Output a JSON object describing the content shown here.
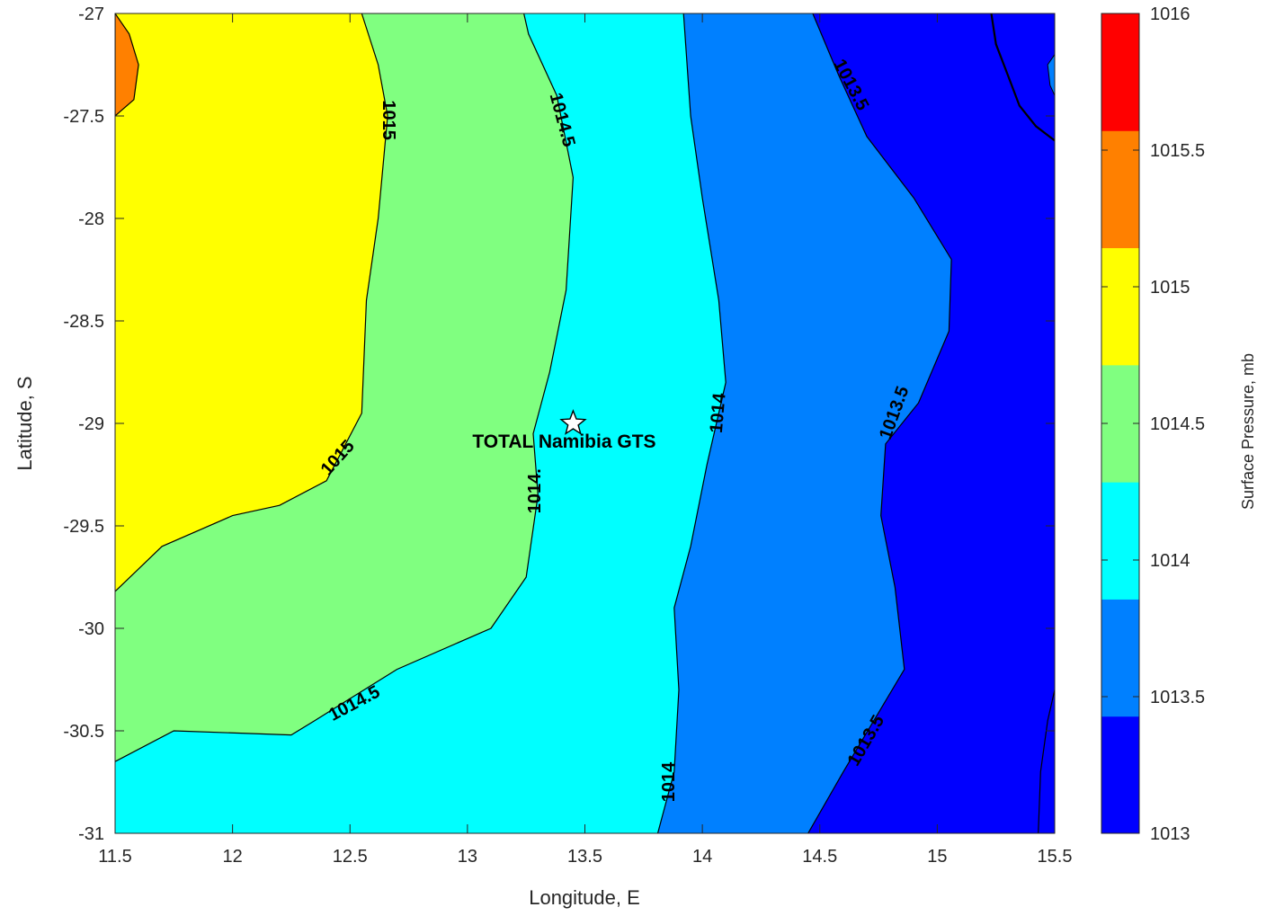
{
  "chart_data": {
    "type": "contourf",
    "title": "",
    "xlabel": "Longitude, E",
    "ylabel": "Latitude, S",
    "xlim": [
      11.5,
      15.5
    ],
    "ylim": [
      -31,
      -27
    ],
    "xticks": [
      "11.5",
      "12",
      "12.5",
      "13",
      "13.5",
      "14",
      "14.5",
      "15",
      "15.5"
    ],
    "yticks": [
      "-27",
      "-27.5",
      "-28",
      "-28.5",
      "-29",
      "-29.5",
      "-30",
      "-30.5",
      "-31"
    ],
    "grid": false,
    "colorbar": {
      "label": "Surface Pressure, mb",
      "range": [
        1013,
        1016
      ],
      "ticks": [
        "1016",
        "1015.5",
        "1015",
        "1014.5",
        "1014",
        "1013.5",
        "1013"
      ],
      "bands": [
        {
          "from": 1013.0,
          "to": 1013.5,
          "color": "#0000ff"
        },
        {
          "from": 1013.5,
          "to": 1014.0,
          "color": "#0080ff"
        },
        {
          "from": 1014.0,
          "to": 1014.5,
          "color": "#00ffff"
        },
        {
          "from": 1014.5,
          "to": 1015.0,
          "color": "#80ff80"
        },
        {
          "from": 1015.0,
          "to": 1015.5,
          "color": "#ffff00"
        },
        {
          "from": 1015.5,
          "to": 1016.0,
          "color": "#ff8000"
        },
        {
          "from": 1016.0,
          "to": 1016.5,
          "color": "#ff0000"
        }
      ]
    },
    "contour_levels": [
      {
        "level": 1015.0,
        "label": "1015",
        "points": [
          [
            11.5,
            -29.82
          ],
          [
            11.7,
            -29.6
          ],
          [
            12.0,
            -29.45
          ],
          [
            12.2,
            -29.4
          ],
          [
            12.4,
            -29.28
          ],
          [
            12.55,
            -28.95
          ],
          [
            12.57,
            -28.4
          ],
          [
            12.62,
            -28.0
          ],
          [
            12.66,
            -27.5
          ],
          [
            12.62,
            -27.25
          ],
          [
            12.55,
            -27.0
          ]
        ]
      },
      {
        "level": 1014.5,
        "label": "1014.5",
        "points": [
          [
            11.5,
            -30.65
          ],
          [
            11.75,
            -30.5
          ],
          [
            12.25,
            -30.52
          ],
          [
            12.35,
            -30.45
          ],
          [
            12.7,
            -30.2
          ],
          [
            13.1,
            -30.0
          ],
          [
            13.25,
            -29.75
          ],
          [
            13.3,
            -29.35
          ],
          [
            13.28,
            -29.05
          ],
          [
            13.35,
            -28.75
          ],
          [
            13.42,
            -28.35
          ],
          [
            13.45,
            -27.8
          ],
          [
            13.38,
            -27.4
          ],
          [
            13.26,
            -27.1
          ],
          [
            13.24,
            -27.0
          ]
        ]
      },
      {
        "level": 1014.0,
        "label": "1014",
        "points": [
          [
            13.81,
            -31.0
          ],
          [
            13.88,
            -30.7
          ],
          [
            13.9,
            -30.3
          ],
          [
            13.88,
            -29.9
          ],
          [
            13.95,
            -29.6
          ],
          [
            14.02,
            -29.2
          ],
          [
            14.1,
            -28.8
          ],
          [
            14.07,
            -28.4
          ],
          [
            14.0,
            -27.9
          ],
          [
            13.95,
            -27.5
          ],
          [
            13.92,
            -27.0
          ]
        ]
      },
      {
        "level": 1013.5,
        "label": "1013.5",
        "points": [
          [
            14.45,
            -31.0
          ],
          [
            14.6,
            -30.7
          ],
          [
            14.86,
            -30.2
          ],
          [
            14.82,
            -29.8
          ],
          [
            14.76,
            -29.45
          ],
          [
            14.78,
            -29.1
          ],
          [
            14.92,
            -28.9
          ],
          [
            15.05,
            -28.55
          ],
          [
            15.06,
            -28.2
          ],
          [
            14.9,
            -27.9
          ],
          [
            14.7,
            -27.6
          ],
          [
            14.58,
            -27.3
          ],
          [
            14.47,
            -27.0
          ]
        ]
      }
    ],
    "coastline": [
      [
        15.23,
        -27.0
      ],
      [
        15.25,
        -27.15
      ],
      [
        15.3,
        -27.3
      ],
      [
        15.35,
        -27.45
      ],
      [
        15.42,
        -27.55
      ],
      [
        15.5,
        -27.62
      ]
    ],
    "marker": {
      "x": 13.45,
      "y": -29.0,
      "label": "TOTAL Namibia GTS"
    }
  }
}
